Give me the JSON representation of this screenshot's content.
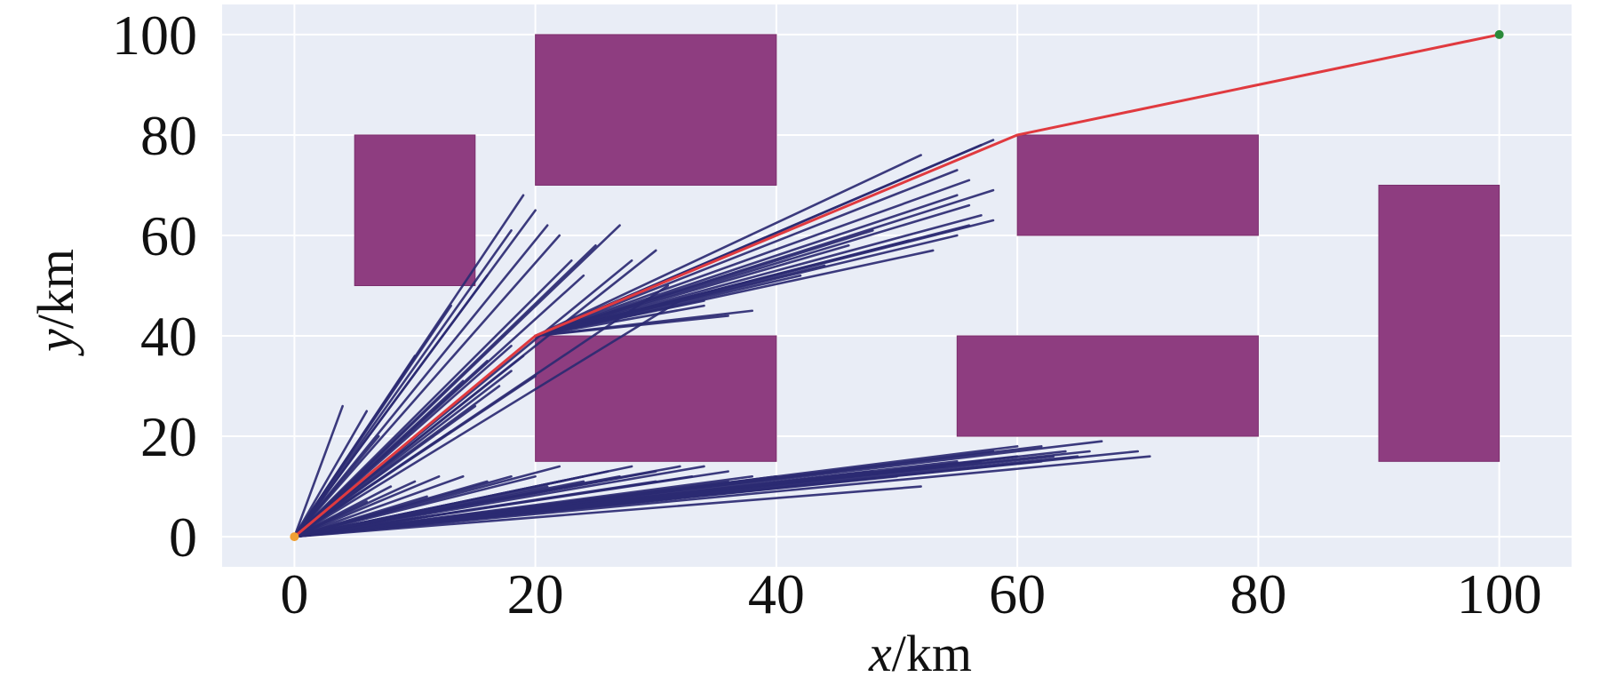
{
  "chart_data": {
    "type": "line",
    "xlabel": {
      "italic": "x",
      "rest": "/km"
    },
    "ylabel": {
      "italic": "y",
      "rest": "/km"
    },
    "xlim": [
      -6,
      106
    ],
    "ylim": [
      -6,
      106
    ],
    "xticks": [
      "0",
      "20",
      "40",
      "60",
      "80",
      "100"
    ],
    "yticks": [
      "0",
      "20",
      "40",
      "60",
      "80",
      "100"
    ],
    "grid": true,
    "colors": {
      "background": "#e9edf6",
      "grid": "#ffffff",
      "obstacle": "#8a377c",
      "tree": "#2b2a72",
      "path": "#e03a3f",
      "start": "#f0a033",
      "goal": "#2a8a3a"
    },
    "start": [
      0,
      0
    ],
    "goal": [
      100,
      100
    ],
    "obstacles": [
      {
        "x0": 5,
        "y0": 50,
        "x1": 15,
        "y1": 80
      },
      {
        "x0": 20,
        "y0": 70,
        "x1": 40,
        "y1": 100
      },
      {
        "x0": 20,
        "y0": 15,
        "x1": 40,
        "y1": 40
      },
      {
        "x0": 60,
        "y0": 60,
        "x1": 80,
        "y1": 80
      },
      {
        "x0": 55,
        "y0": 20,
        "x1": 80,
        "y1": 40
      },
      {
        "x0": 90,
        "y0": 15,
        "x1": 100,
        "y1": 70
      }
    ],
    "path": {
      "x": [
        0,
        20,
        60,
        100
      ],
      "y": [
        0,
        40,
        80,
        100
      ]
    },
    "tree_edges": [
      [
        0,
        0,
        4,
        26
      ],
      [
        0,
        0,
        7,
        20
      ],
      [
        0,
        0,
        6,
        25
      ],
      [
        0,
        0,
        10,
        36
      ],
      [
        0,
        0,
        13,
        46
      ],
      [
        0,
        0,
        16,
        52
      ],
      [
        0,
        0,
        18,
        61
      ],
      [
        0,
        0,
        19,
        68
      ],
      [
        0,
        0,
        20,
        65
      ],
      [
        0,
        0,
        21,
        62
      ],
      [
        0,
        0,
        22,
        60
      ],
      [
        0,
        0,
        23,
        55
      ],
      [
        0,
        0,
        24,
        52
      ],
      [
        0,
        0,
        25,
        58
      ],
      [
        0,
        0,
        27,
        62
      ],
      [
        0,
        0,
        28,
        55
      ],
      [
        0,
        0,
        30,
        57
      ],
      [
        0,
        0,
        31,
        50
      ],
      [
        0,
        0,
        32,
        47
      ],
      [
        0,
        0,
        13,
        21
      ],
      [
        0,
        0,
        15,
        26
      ],
      [
        0,
        0,
        17,
        30
      ],
      [
        0,
        0,
        18,
        33
      ],
      [
        0,
        0,
        19,
        36
      ],
      [
        0,
        0,
        20,
        32
      ],
      [
        0,
        0,
        18,
        38
      ],
      [
        0,
        0,
        16,
        35
      ],
      [
        0,
        0,
        14,
        31
      ],
      [
        20,
        40,
        52,
        76
      ],
      [
        20,
        40,
        55,
        73
      ],
      [
        20,
        40,
        57,
        78
      ],
      [
        20,
        40,
        58,
        79
      ],
      [
        20,
        40,
        56,
        71
      ],
      [
        20,
        40,
        55,
        68
      ],
      [
        20,
        40,
        56,
        66
      ],
      [
        20,
        40,
        58,
        69
      ],
      [
        20,
        40,
        57,
        64
      ],
      [
        20,
        40,
        56,
        62
      ],
      [
        20,
        40,
        58,
        63
      ],
      [
        20,
        40,
        55,
        60
      ],
      [
        20,
        40,
        53,
        57
      ],
      [
        20,
        40,
        51,
        59
      ],
      [
        20,
        40,
        48,
        61
      ],
      [
        20,
        40,
        46,
        58
      ],
      [
        20,
        40,
        44,
        54
      ],
      [
        20,
        40,
        42,
        52
      ],
      [
        20,
        40,
        34,
        46
      ],
      [
        20,
        40,
        36,
        44
      ],
      [
        20,
        40,
        38,
        45
      ],
      [
        20,
        40,
        34,
        47
      ],
      [
        0,
        0,
        5,
        8
      ],
      [
        0,
        0,
        8,
        10
      ],
      [
        0,
        0,
        10,
        11
      ],
      [
        0,
        0,
        12,
        12
      ],
      [
        0,
        0,
        14,
        12
      ],
      [
        0,
        0,
        16,
        11
      ],
      [
        0,
        0,
        18,
        12
      ],
      [
        0,
        0,
        22,
        14
      ],
      [
        0,
        0,
        24,
        12
      ],
      [
        0,
        0,
        26,
        13
      ],
      [
        0,
        0,
        28,
        14
      ],
      [
        0,
        0,
        30,
        13
      ],
      [
        0,
        0,
        32,
        14
      ],
      [
        0,
        0,
        34,
        14
      ],
      [
        0,
        0,
        36,
        13
      ],
      [
        0,
        0,
        38,
        12
      ],
      [
        0,
        0,
        40,
        12
      ],
      [
        0,
        0,
        45,
        13
      ],
      [
        0,
        0,
        50,
        12
      ],
      [
        0,
        0,
        52,
        10
      ],
      [
        0,
        0,
        55,
        15
      ],
      [
        0,
        0,
        58,
        17
      ],
      [
        0,
        0,
        60,
        18
      ],
      [
        0,
        0,
        62,
        18
      ],
      [
        0,
        0,
        64,
        17
      ],
      [
        0,
        0,
        65,
        16
      ],
      [
        0,
        0,
        66,
        17
      ],
      [
        0,
        0,
        67,
        19
      ],
      [
        0,
        0,
        70,
        17
      ],
      [
        0,
        0,
        71,
        16
      ],
      [
        0,
        0,
        42,
        11
      ],
      [
        0,
        0,
        46,
        12
      ],
      [
        0,
        0,
        48,
        13
      ],
      [
        0,
        0,
        54,
        14
      ],
      [
        0,
        0,
        57,
        15
      ],
      [
        0,
        0,
        60,
        16
      ],
      [
        0,
        0,
        62,
        15
      ],
      [
        0,
        0,
        63,
        16
      ],
      [
        0,
        0,
        36,
        11
      ],
      [
        0,
        0,
        33,
        12
      ],
      [
        0,
        0,
        30,
        11
      ],
      [
        0,
        0,
        27,
        12
      ],
      [
        0,
        0,
        24,
        11
      ],
      [
        0,
        0,
        21,
        10
      ],
      [
        0,
        0,
        20,
        12
      ],
      [
        0,
        0,
        9,
        6
      ],
      [
        0,
        0,
        11,
        8
      ],
      [
        0,
        0,
        6,
        7
      ]
    ]
  }
}
